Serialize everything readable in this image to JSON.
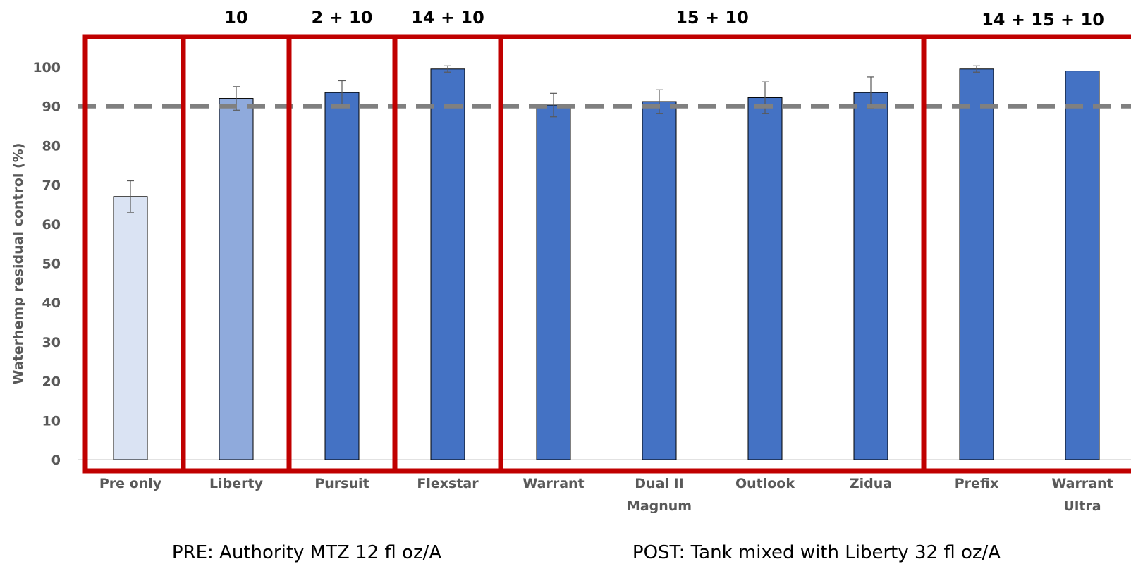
{
  "chart_data": {
    "type": "bar",
    "title": "",
    "xlabel": "",
    "ylabel": "Waterhemp residual control (%)",
    "ylim": [
      0,
      100
    ],
    "yticks": [
      0,
      10,
      20,
      30,
      40,
      50,
      60,
      70,
      80,
      90,
      100
    ],
    "grid": false,
    "categories": [
      "Pre only",
      "Liberty",
      "Pursuit",
      "Flexstar",
      "Warrant",
      "Dual II Magnum",
      "Outlook",
      "Zidua",
      "Prefix",
      "Warrant Ultra"
    ],
    "category_lines": [
      [
        "Pre only"
      ],
      [
        "Liberty"
      ],
      [
        "Pursuit"
      ],
      [
        "Flexstar"
      ],
      [
        "Warrant"
      ],
      [
        "Dual II",
        "Magnum"
      ],
      [
        "Outlook"
      ],
      [
        "Zidua"
      ],
      [
        "Prefix"
      ],
      [
        "Warrant",
        "Ultra"
      ]
    ],
    "values": [
      67,
      92,
      93.5,
      99.5,
      90.3,
      91.2,
      92.2,
      93.5,
      99.5,
      99
    ],
    "error_bars": [
      4,
      3,
      3,
      0.8,
      3,
      3,
      4,
      4,
      0.8,
      0
    ],
    "bar_colors": [
      "#dae3f3",
      "#8faadc",
      "#4472c4",
      "#4472c4",
      "#4472c4",
      "#4472c4",
      "#4472c4",
      "#4472c4",
      "#4472c4",
      "#4472c4"
    ],
    "reference_line": {
      "value": 90,
      "style": "dashed",
      "color": "#808080"
    },
    "groups": [
      {
        "label": "",
        "categories": [
          "Pre only"
        ]
      },
      {
        "label": "10",
        "categories": [
          "Liberty"
        ]
      },
      {
        "label": "2 + 10",
        "categories": [
          "Pursuit"
        ]
      },
      {
        "label": "14 + 10",
        "categories": [
          "Flexstar"
        ]
      },
      {
        "label": "15 + 10",
        "categories": [
          "Warrant",
          "Dual II Magnum",
          "Outlook",
          "Zidua"
        ]
      },
      {
        "label": "14 + 15 + 10",
        "categories": [
          "Prefix",
          "Warrant Ultra"
        ]
      }
    ],
    "group_box_color": "#c00000",
    "footnotes": {
      "pre": "PRE: Authority MTZ 12 fl oz/A",
      "post": "POST: Tank mixed with Liberty 32 fl oz/A"
    }
  }
}
